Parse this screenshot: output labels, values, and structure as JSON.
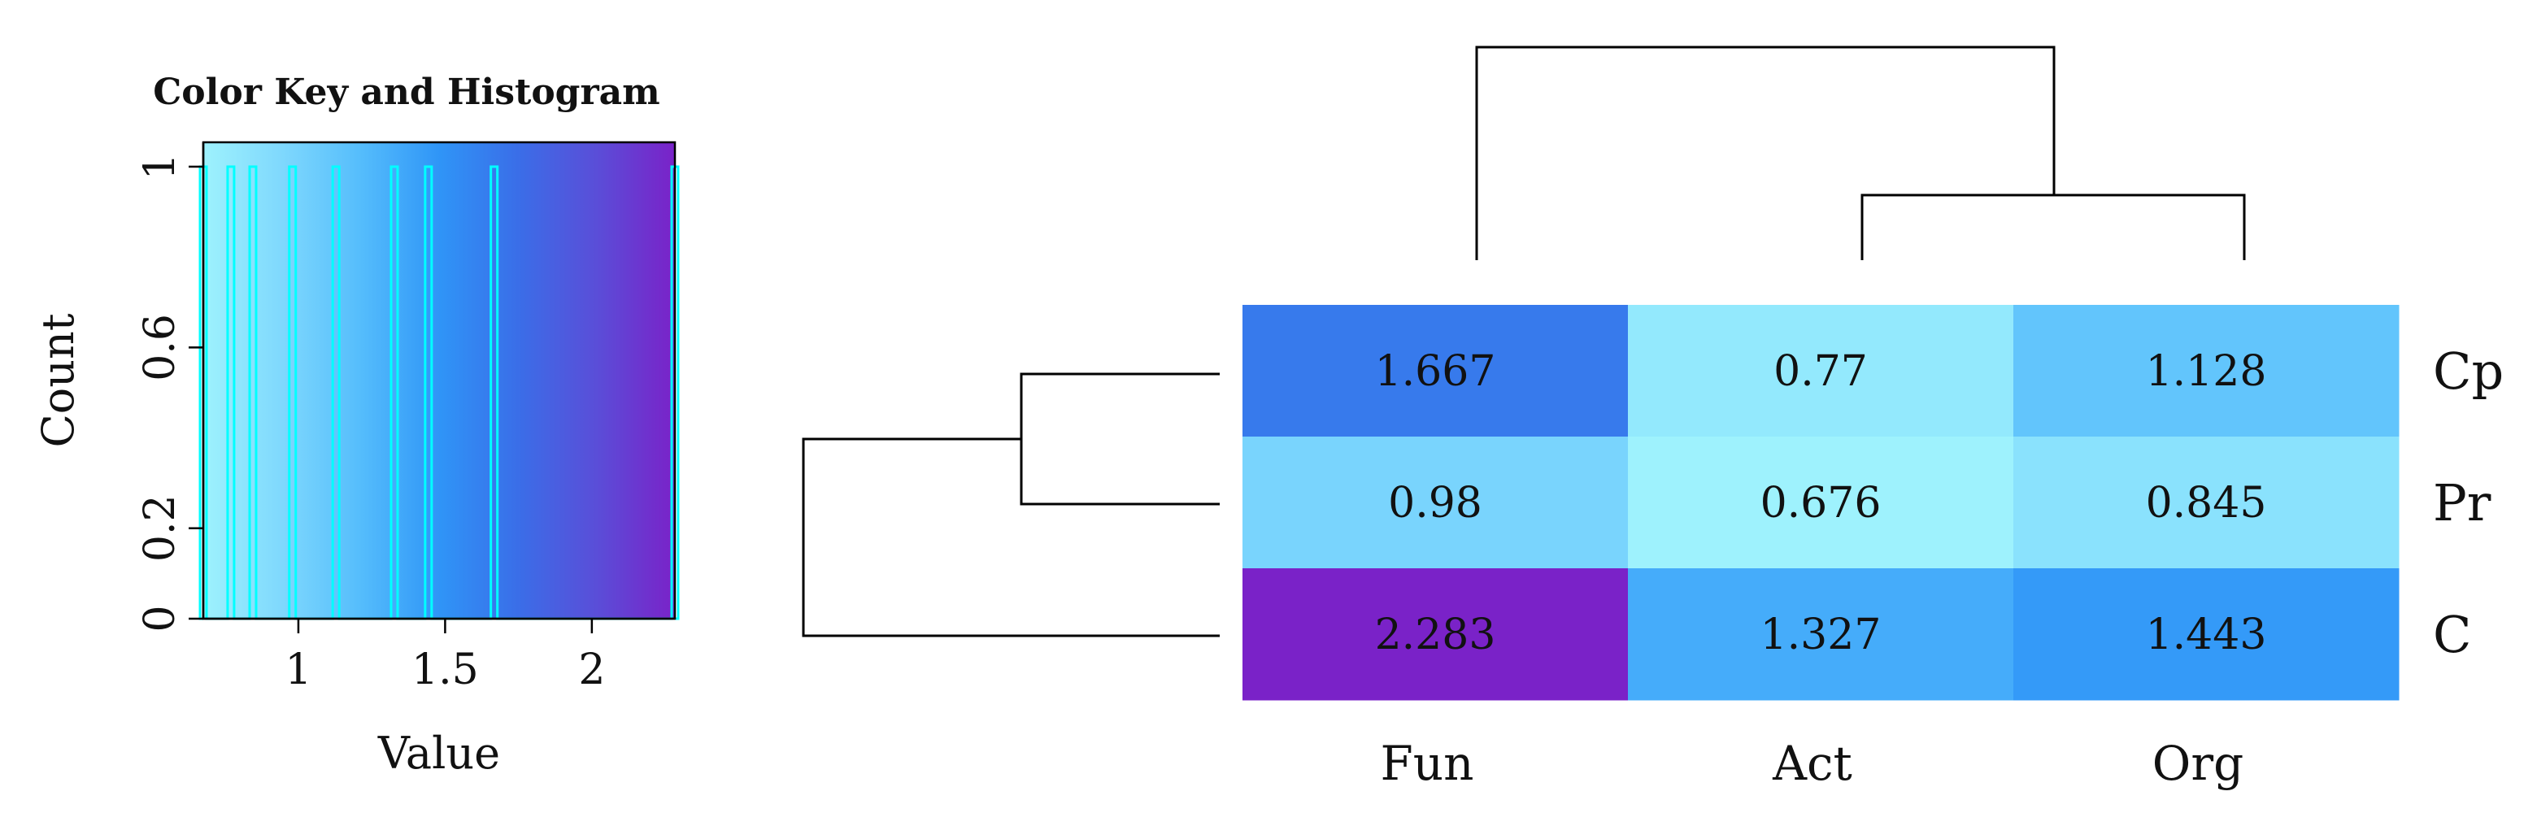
{
  "chart_data": [
    {
      "type": "histogram",
      "title": "Color Key and Histogram",
      "xlabel": "Value",
      "ylabel": "Count",
      "xlim": [
        0.676,
        2.283
      ],
      "ylim": [
        0,
        1
      ],
      "x_ticks": [
        1,
        1.5,
        2
      ],
      "y_ticks": [
        0,
        0.2,
        0.6,
        1
      ],
      "x_tick_labels": [
        "1",
        "1.5",
        "2"
      ],
      "y_tick_labels": [
        "0",
        "0.2",
        "0.6",
        "1"
      ],
      "histogram_values": [
        0.676,
        0.77,
        0.845,
        0.98,
        1.128,
        1.327,
        1.443,
        1.667,
        2.283
      ],
      "histogram_count": 1,
      "colorscale": [
        "#9ef2fd",
        "#7fd8fd",
        "#55bdfc",
        "#2f95f7",
        "#3a6ee8",
        "#5a4ed8",
        "#7a22c8"
      ],
      "histogram_color": "#00ffff"
    },
    {
      "type": "heatmap",
      "rows": [
        "Cp",
        "Pr",
        "C"
      ],
      "columns": [
        "Fun",
        "Act",
        "Org"
      ],
      "values": [
        [
          1.667,
          0.77,
          1.128
        ],
        [
          0.98,
          0.676,
          0.845
        ],
        [
          2.283,
          1.327,
          1.443
        ]
      ],
      "value_labels": [
        [
          "1.667",
          "0.77",
          "1.128"
        ],
        [
          "0.98",
          "0.676",
          "0.845"
        ],
        [
          "2.283",
          "1.327",
          "1.443"
        ]
      ],
      "row_dendrogram": "((Cp,Pr),C)",
      "column_dendrogram": "(Fun,(Act,Org))"
    }
  ]
}
